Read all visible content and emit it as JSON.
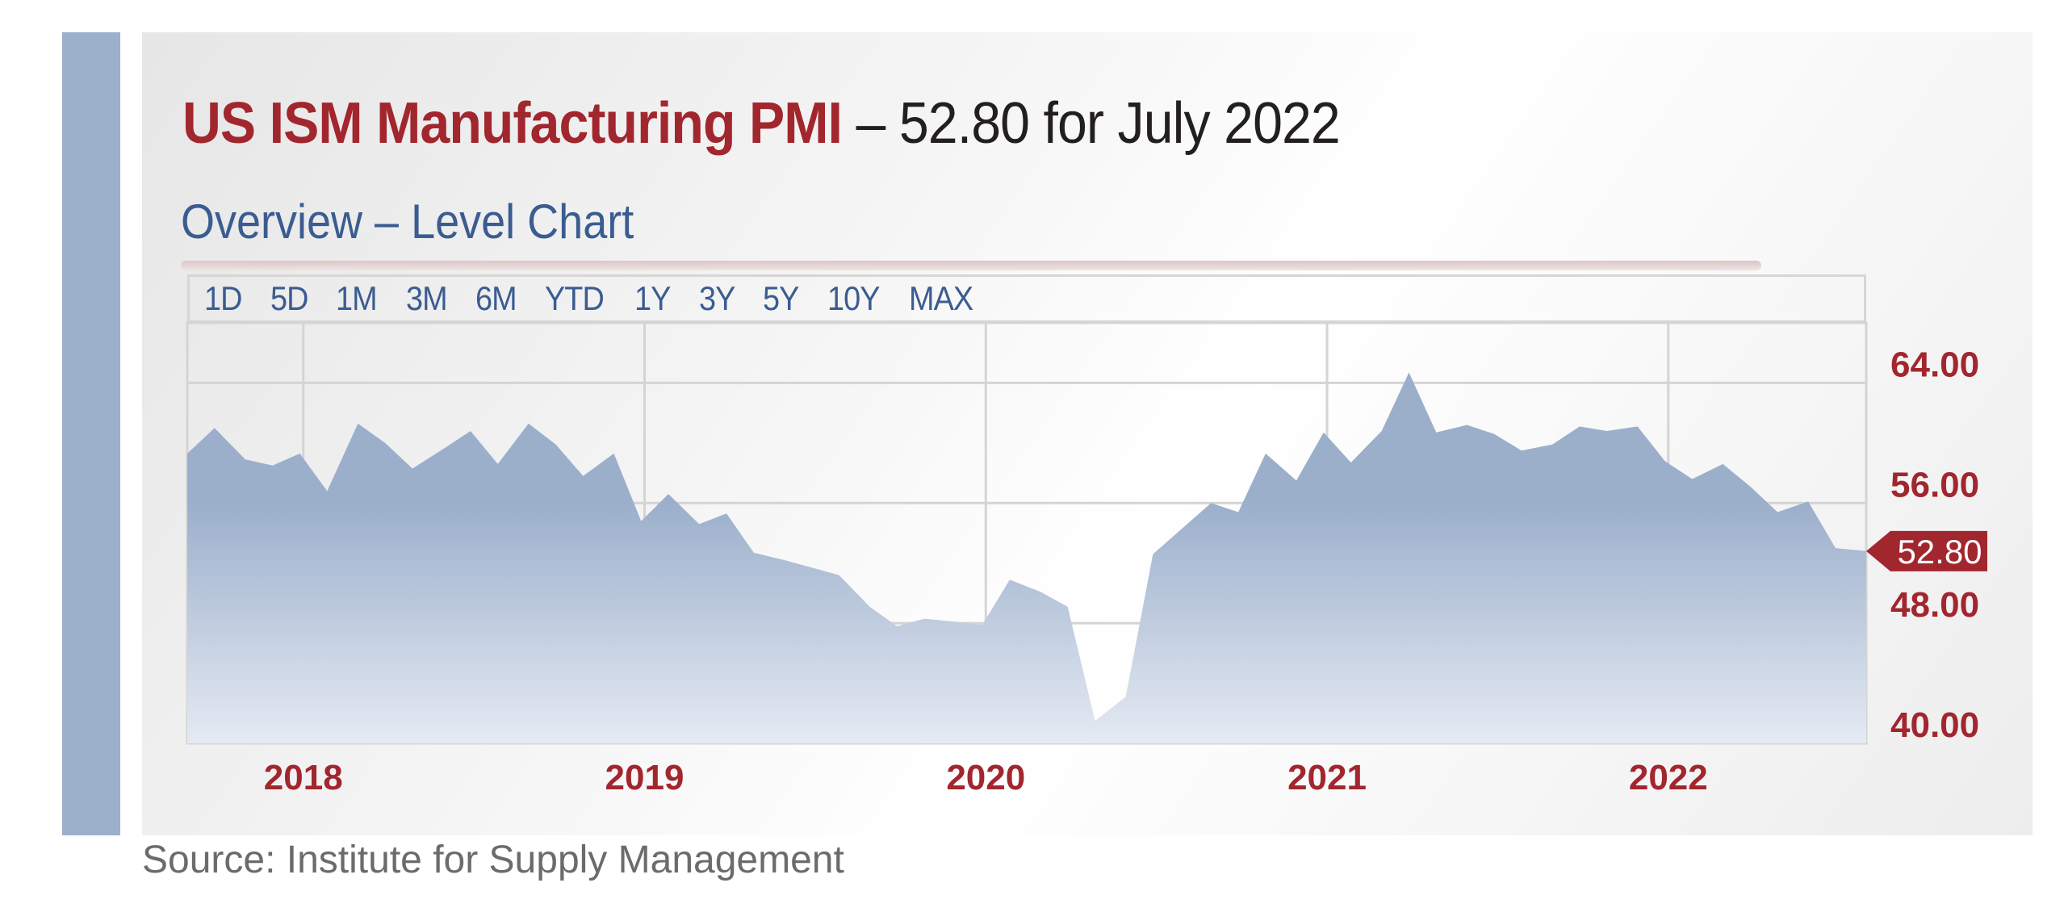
{
  "title": {
    "main": "US ISM Manufacturing PMI",
    "rest": " – 52.80 for July 2022"
  },
  "subtitle": "Overview – Level Chart",
  "range_buttons": [
    "1D",
    "5D",
    "1M",
    "3M",
    "6M",
    "YTD",
    "1Y",
    "3Y",
    "5Y",
    "10Y",
    "MAX"
  ],
  "source": "Source: Institute for Supply Management",
  "colors": {
    "accent_bar": "#9cb0cc",
    "title_red": "#a2262e",
    "title_dark": "#231f20",
    "subtitle_blue": "#3b5c91",
    "range_blue": "#3b5c91",
    "area_top": "#9bafcb",
    "area_bottom": "#e5eaf3",
    "grid": "#d4d4d4",
    "axis_red": "#a2262e",
    "source_gray": "#6b6b6b"
  },
  "chart_data": {
    "type": "area",
    "title": "US ISM Manufacturing PMI",
    "xlabel": "",
    "ylabel": "",
    "ylim": [
      40,
      68
    ],
    "xlim": [
      2017.66,
      2022.58
    ],
    "y_ticks": [
      {
        "value": 40,
        "label": "40.00"
      },
      {
        "value": 48,
        "label": "48.00"
      },
      {
        "value": 56,
        "label": "56.00"
      },
      {
        "value": 64,
        "label": "64.00"
      }
    ],
    "x_ticks": [
      {
        "value": 2018.0,
        "label": "2018"
      },
      {
        "value": 2019.0,
        "label": "2019"
      },
      {
        "value": 2020.0,
        "label": "2020"
      },
      {
        "value": 2021.0,
        "label": "2021"
      },
      {
        "value": 2022.0,
        "label": "2022"
      }
    ],
    "grid": true,
    "last_value": {
      "value": 52.8,
      "label": "52.80"
    },
    "series": [
      {
        "values": [
          [
            2017.66,
            59.3
          ],
          [
            2017.74,
            61.0
          ],
          [
            2017.83,
            58.9
          ],
          [
            2017.91,
            58.5
          ],
          [
            2017.99,
            59.3
          ],
          [
            2018.07,
            56.8
          ],
          [
            2018.16,
            61.3
          ],
          [
            2018.24,
            60.0
          ],
          [
            2018.32,
            58.3
          ],
          [
            2018.41,
            59.6
          ],
          [
            2018.49,
            60.8
          ],
          [
            2018.57,
            58.6
          ],
          [
            2018.66,
            61.3
          ],
          [
            2018.74,
            59.9
          ],
          [
            2018.82,
            57.8
          ],
          [
            2018.91,
            59.3
          ],
          [
            2018.99,
            54.8
          ],
          [
            2019.07,
            56.6
          ],
          [
            2019.16,
            54.6
          ],
          [
            2019.24,
            55.3
          ],
          [
            2019.32,
            52.7
          ],
          [
            2019.41,
            52.2
          ],
          [
            2019.49,
            51.7
          ],
          [
            2019.57,
            51.2
          ],
          [
            2019.66,
            49.1
          ],
          [
            2019.74,
            47.8
          ],
          [
            2019.82,
            48.3
          ],
          [
            2019.91,
            48.1
          ],
          [
            2019.99,
            47.9
          ],
          [
            2020.07,
            50.9
          ],
          [
            2020.16,
            50.1
          ],
          [
            2020.24,
            49.1
          ],
          [
            2020.32,
            41.5
          ],
          [
            2020.41,
            43.1
          ],
          [
            2020.49,
            52.6
          ],
          [
            2020.57,
            54.2
          ],
          [
            2020.66,
            56.0
          ],
          [
            2020.74,
            55.4
          ],
          [
            2020.82,
            59.3
          ],
          [
            2020.91,
            57.5
          ],
          [
            2020.99,
            60.7
          ],
          [
            2021.07,
            58.7
          ],
          [
            2021.16,
            60.8
          ],
          [
            2021.24,
            64.7
          ],
          [
            2021.32,
            60.7
          ],
          [
            2021.41,
            61.2
          ],
          [
            2021.49,
            60.6
          ],
          [
            2021.57,
            59.5
          ],
          [
            2021.66,
            59.9
          ],
          [
            2021.74,
            61.1
          ],
          [
            2021.82,
            60.8
          ],
          [
            2021.91,
            61.1
          ],
          [
            2021.99,
            58.8
          ],
          [
            2022.07,
            57.6
          ],
          [
            2022.16,
            58.6
          ],
          [
            2022.24,
            57.1
          ],
          [
            2022.32,
            55.4
          ],
          [
            2022.41,
            56.1
          ],
          [
            2022.49,
            53.0
          ],
          [
            2022.58,
            52.8
          ]
        ]
      }
    ]
  }
}
